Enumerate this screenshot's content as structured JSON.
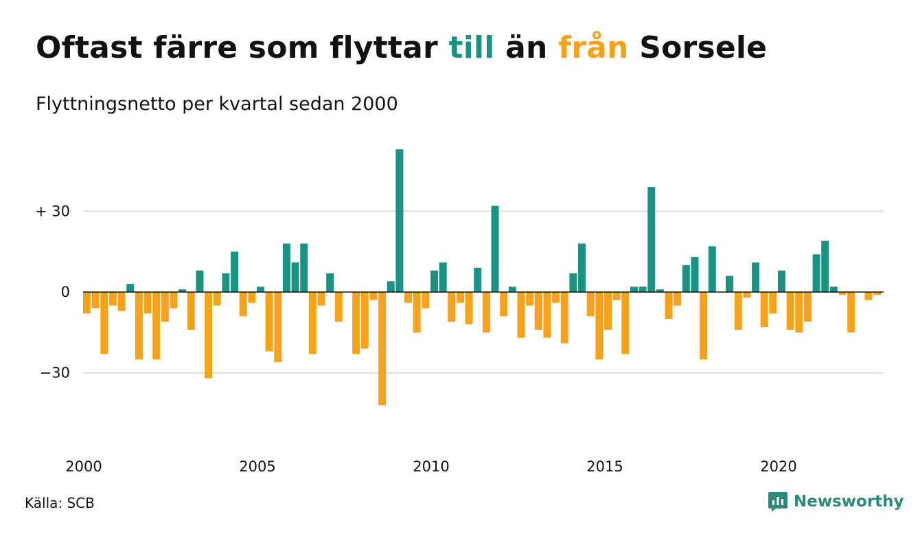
{
  "header": {
    "title_part1": "Oftast färre som flyttar ",
    "title_till": "till",
    "title_part2": " än ",
    "title_fran": "från",
    "title_part3": " Sorsele",
    "subtitle": "Flyttningsnetto per kvartal sedan 2000"
  },
  "footer": {
    "source": "Källa: SCB",
    "brand": "Newsworthy",
    "brand_icon": "newsworthy-logo-icon"
  },
  "colors": {
    "positive": "#1a9384",
    "negative": "#f7a21b",
    "gridline": "#dddddd",
    "zeroline": "#111111"
  },
  "chart_data": {
    "type": "bar",
    "title": "Oftast färre som flyttar till än från Sorsele",
    "subtitle": "Flyttningsnetto per kvartal sedan 2000",
    "xlabel": "",
    "ylabel": "",
    "grid": true,
    "ylim": [
      -45,
      55
    ],
    "yticks": [
      {
        "value": 30,
        "label": "+ 30"
      },
      {
        "value": 0,
        "label": "0"
      },
      {
        "value": -30,
        "label": "−30"
      }
    ],
    "xticks": [
      {
        "year": 2000,
        "label": "2000"
      },
      {
        "year": 2005,
        "label": "2005"
      },
      {
        "year": 2010,
        "label": "2010"
      },
      {
        "year": 2015,
        "label": "2015"
      },
      {
        "year": 2020,
        "label": "2020"
      }
    ],
    "start": "2000 Q1",
    "values": [
      -8,
      -6,
      -23,
      -5,
      -7,
      3,
      -25,
      -8,
      -25,
      -11,
      -6,
      1,
      -14,
      8,
      -32,
      -5,
      7,
      15,
      -9,
      -4,
      2,
      -22,
      -26,
      18,
      11,
      18,
      -23,
      -5,
      7,
      -11,
      0,
      -23,
      -21,
      -3,
      -42,
      4,
      53,
      -4,
      -15,
      -6,
      8,
      11,
      -11,
      -4,
      -12,
      9,
      -15,
      32,
      -9,
      2,
      -17,
      -5,
      -14,
      -17,
      -4,
      -19,
      7,
      18,
      -9,
      -25,
      -14,
      -3,
      -23,
      2,
      2,
      39,
      1,
      -10,
      -5,
      10,
      13,
      -25,
      17,
      0,
      6,
      -14,
      -2,
      11,
      -13,
      -8,
      8,
      -14,
      -15,
      -11,
      14,
      19,
      2,
      -1,
      -15,
      0,
      -3,
      -1
    ]
  }
}
